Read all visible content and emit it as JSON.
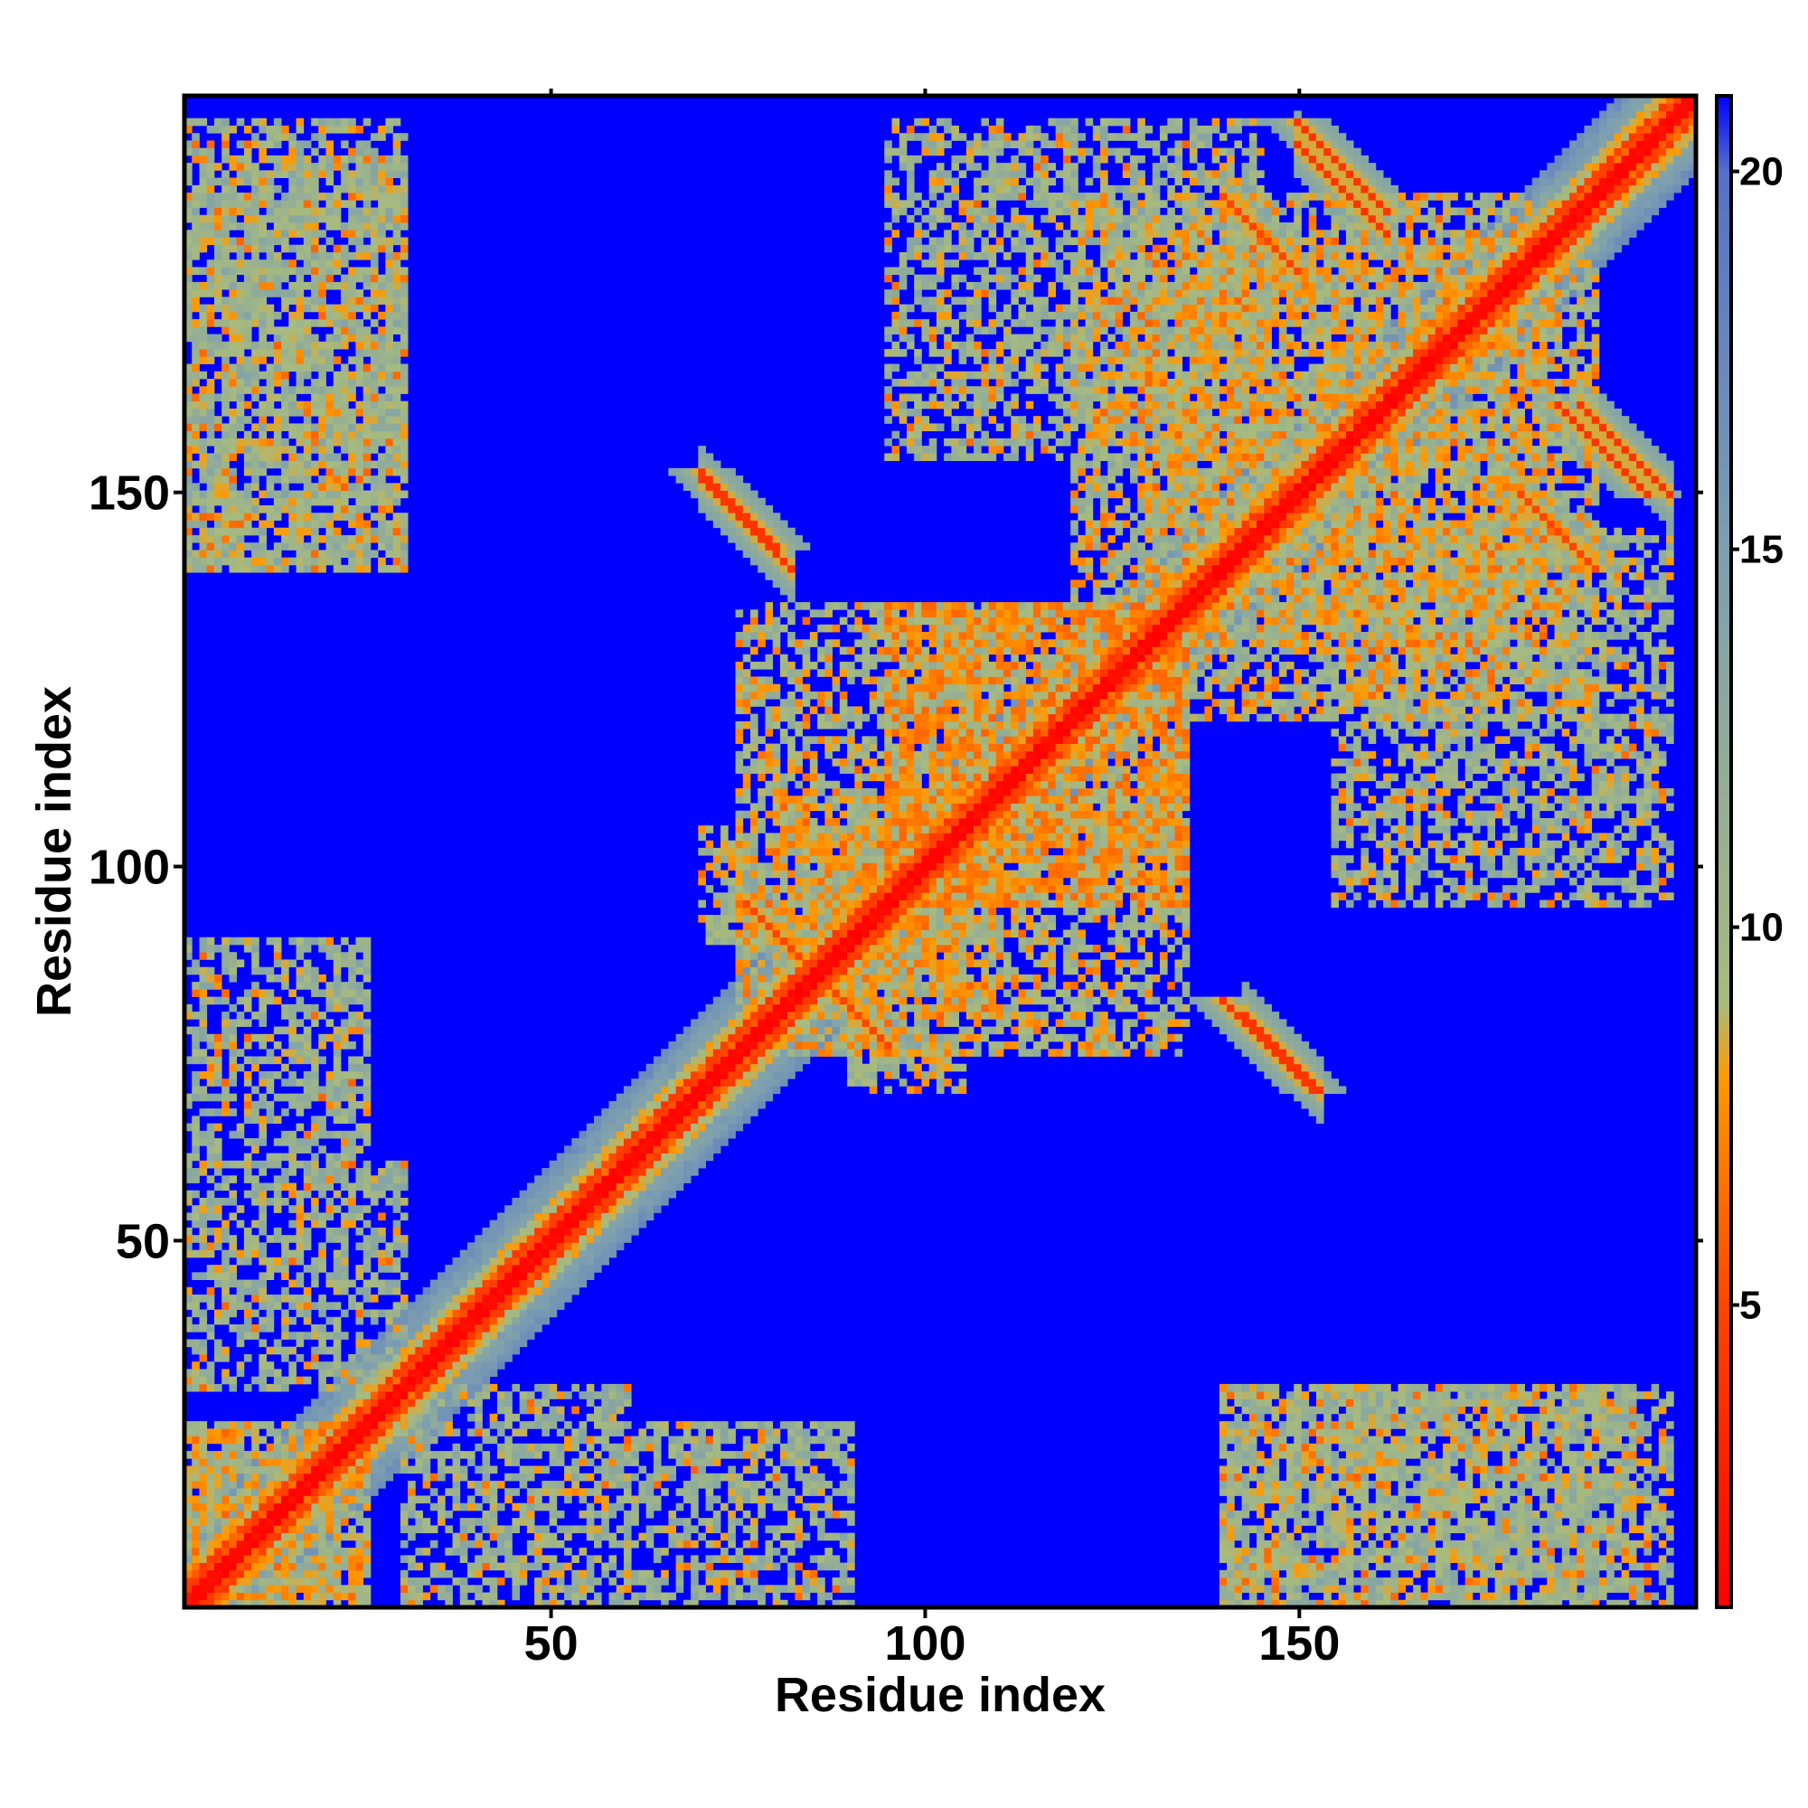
{
  "chart_data": {
    "type": "heatmap",
    "title": "",
    "xlabel": "Residue index",
    "ylabel": "Residue index",
    "n_residues": 203,
    "xlim": [
      1,
      203
    ],
    "ylim": [
      1,
      203
    ],
    "x_ticks": [
      50,
      100,
      150
    ],
    "y_ticks": [
      50,
      100,
      150
    ],
    "x_tick_labels": [
      "50",
      "100",
      "150"
    ],
    "y_tick_labels": [
      "50",
      "100",
      "150"
    ],
    "colorbar": {
      "range": [
        1,
        21
      ],
      "ticks": [
        5,
        10,
        15,
        20
      ],
      "tick_labels": [
        "5",
        "10",
        "15",
        "20"
      ],
      "stops": [
        {
          "value": 1,
          "color": "#ff0000"
        },
        {
          "value": 5,
          "color": "#ff4500"
        },
        {
          "value": 8,
          "color": "#ff9900"
        },
        {
          "value": 9,
          "color": "#a8bb7e"
        },
        {
          "value": 15,
          "color": "#7d9fb0"
        },
        {
          "value": 20,
          "color": "#5570c8"
        },
        {
          "value": 21,
          "color": "#0000ff"
        }
      ]
    },
    "background_value": 21,
    "diagonal_band": {
      "width_residues": 5,
      "value": 2
    },
    "contact_regions": [
      {
        "i": [
          1,
          25
        ],
        "j": [
          1,
          25
        ],
        "value": 10
      },
      {
        "i": [
          1,
          30
        ],
        "j": [
          30,
          60
        ],
        "value": 11
      },
      {
        "i": [
          60,
          90
        ],
        "j": [
          1,
          25
        ],
        "value": 11
      },
      {
        "i": [
          70,
          100
        ],
        "j": [
          90,
          105
        ],
        "value": 10
      },
      {
        "i": [
          95,
          135
        ],
        "j": [
          95,
          135
        ],
        "value": 9
      },
      {
        "i": [
          1,
          30
        ],
        "j": [
          140,
          200
        ],
        "value": 11
      },
      {
        "i": [
          75,
          110
        ],
        "j": [
          80,
          135
        ],
        "value": 10
      },
      {
        "i": [
          140,
          195
        ],
        "j": [
          1,
          30
        ],
        "value": 11
      },
      {
        "i": [
          155,
          200
        ],
        "j": [
          95,
          145
        ],
        "value": 11
      },
      {
        "i": [
          130,
          190
        ],
        "j": [
          120,
          185
        ],
        "value": 10
      }
    ],
    "antiparallel_strands": [
      {
        "i": [
          70,
          80
        ],
        "j": [
          142,
          153
        ],
        "value": 4
      },
      {
        "i": [
          140,
          152
        ],
        "j": [
          70,
          82
        ],
        "value": 4
      },
      {
        "i": [
          150,
          162
        ],
        "j": [
          185,
          200
        ],
        "value": 4
      },
      {
        "i": [
          185,
          200
        ],
        "j": [
          150,
          162
        ],
        "value": 4
      },
      {
        "i": [
          85,
          95
        ],
        "j": [
          76,
          86
        ],
        "value": 5
      },
      {
        "i": [
          180,
          190
        ],
        "j": [
          140,
          150
        ],
        "value": 5
      }
    ]
  }
}
